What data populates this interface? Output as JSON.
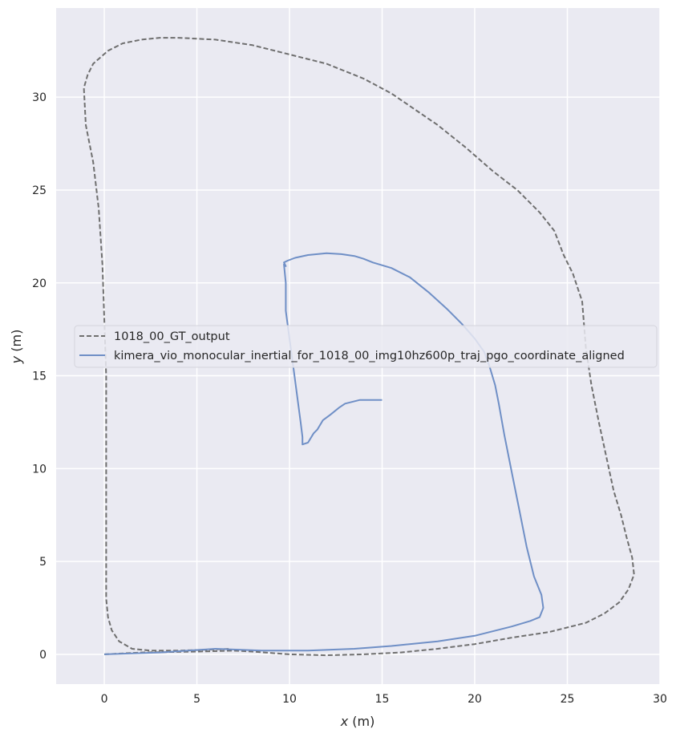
{
  "chart_data": {
    "type": "line",
    "title": "",
    "xlabel_var": "x",
    "xlabel_unit": " (m)",
    "ylabel_var": "y",
    "ylabel_unit": " (m)",
    "xlim": [
      -2.6,
      30.0
    ],
    "ylim": [
      -1.6,
      34.8
    ],
    "x_ticks": [
      0,
      5,
      10,
      15,
      20,
      25,
      30
    ],
    "y_ticks": [
      0,
      5,
      10,
      15,
      20,
      25,
      30
    ],
    "grid": true,
    "legend_position": "center-left",
    "background_color": "#eaeaf2",
    "grid_color": "#ffffff",
    "series": [
      {
        "name": "1018_00_GT_output",
        "color": "#6f6f6f",
        "dash": "dashed",
        "x": [
          0.0,
          2.0,
          5.0,
          7.0,
          8.0,
          10.0,
          12.0,
          14.0,
          16.0,
          18.0,
          20.0,
          22.0,
          24.0,
          26.0,
          27.0,
          27.8,
          28.3,
          28.6,
          28.5,
          28.2,
          27.9,
          27.5,
          27.2,
          26.7,
          26.3,
          26.0,
          25.8,
          25.3,
          24.8,
          24.3,
          23.5,
          22.3,
          21.0,
          19.5,
          18.0,
          15.5,
          14.0,
          12.0,
          10.0,
          8.0,
          6.0,
          4.0,
          3.0,
          2.0,
          1.0,
          0.2,
          -0.6,
          -0.9,
          -1.1,
          -1.0,
          -0.6,
          -0.3,
          -0.1,
          0.0,
          0.1,
          0.1,
          0.1,
          0.1,
          0.1,
          0.2,
          0.4,
          0.8,
          1.5,
          2.5,
          4.0,
          5.5,
          6.8
        ],
        "y": [
          0.0,
          0.1,
          0.15,
          0.2,
          0.15,
          0.0,
          -0.05,
          0.0,
          0.1,
          0.3,
          0.55,
          0.9,
          1.2,
          1.7,
          2.2,
          2.8,
          3.5,
          4.3,
          5.2,
          6.3,
          7.5,
          8.8,
          10.2,
          12.5,
          14.5,
          16.5,
          19.0,
          20.5,
          21.5,
          22.8,
          23.8,
          25.0,
          26.0,
          27.3,
          28.5,
          30.2,
          31.0,
          31.8,
          32.3,
          32.8,
          33.1,
          33.2,
          33.2,
          33.1,
          32.9,
          32.5,
          31.8,
          31.2,
          30.5,
          28.5,
          26.5,
          24.0,
          21.0,
          18.0,
          15.0,
          12.0,
          9.0,
          6.0,
          3.0,
          2.0,
          1.3,
          0.7,
          0.3,
          0.2,
          0.2,
          0.25,
          0.3
        ]
      },
      {
        "name": "kimera_vio_monocular_inertial_for_1018_00_img10hz600p_traj_pgo_coordinate_aligned",
        "color": "#6f8fc6",
        "dash": "solid",
        "x": [
          0.0,
          3.0,
          6.0,
          8.5,
          11.0,
          13.5,
          15.5,
          18.0,
          20.0,
          22.0,
          23.0,
          23.5,
          23.7,
          23.6,
          23.2,
          22.8,
          22.4,
          22.0,
          21.6,
          21.3,
          21.1,
          20.8,
          20.5,
          20.0,
          19.3,
          18.5,
          17.5,
          16.5,
          15.5,
          14.5,
          14.0,
          13.5,
          12.8,
          12.0,
          11.0,
          10.3,
          9.9,
          9.7,
          9.8,
          9.7,
          9.8,
          9.8,
          10.0,
          10.2,
          10.4,
          10.6,
          10.7,
          10.7,
          11.0,
          11.3,
          11.5,
          11.8,
          12.2,
          12.7,
          13.0,
          13.8,
          14.5,
          15.0
        ],
        "y": [
          0.0,
          0.1,
          0.3,
          0.2,
          0.2,
          0.3,
          0.45,
          0.7,
          1.0,
          1.5,
          1.8,
          2.0,
          2.5,
          3.2,
          4.2,
          5.8,
          7.8,
          9.8,
          11.8,
          13.5,
          14.5,
          15.5,
          16.3,
          17.0,
          17.8,
          18.6,
          19.5,
          20.3,
          20.8,
          21.1,
          21.3,
          21.45,
          21.55,
          21.6,
          21.5,
          21.35,
          21.2,
          21.1,
          20.9,
          21.0,
          20.0,
          18.5,
          17.0,
          15.5,
          14.0,
          12.5,
          11.7,
          11.3,
          11.4,
          11.9,
          12.1,
          12.6,
          12.9,
          13.3,
          13.5,
          13.7,
          13.7,
          13.7
        ]
      }
    ]
  }
}
